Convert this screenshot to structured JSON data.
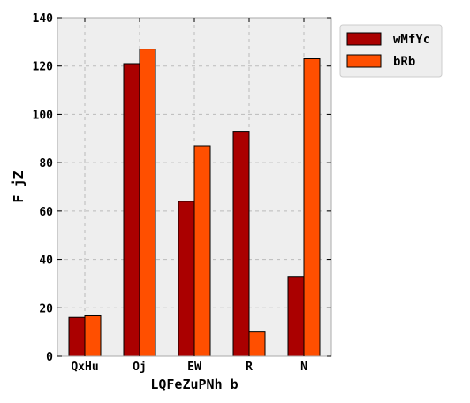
{
  "chart_data": {
    "type": "bar",
    "categories": [
      "QxHu",
      "Oj",
      "EW",
      "R",
      "N"
    ],
    "series": [
      {
        "name": "wMfYc",
        "values": [
          16,
          121,
          64,
          93,
          33
        ],
        "color": "#aa0000"
      },
      {
        "name": "bRb",
        "values": [
          17,
          127,
          87,
          10,
          123
        ],
        "color": "#ff4f00"
      }
    ],
    "xlabel": "LQFeZuPNh b",
    "ylabel": "F jZ",
    "ylim": [
      0,
      140
    ],
    "yticks": [
      0,
      20,
      40,
      60,
      80,
      100,
      120,
      140
    ],
    "grid": true,
    "legend_position": "outside-top-right",
    "colors": {
      "plot_background": "#eeeeee",
      "grid": "#bbbbbb",
      "frame": "#aaaaaa"
    }
  }
}
